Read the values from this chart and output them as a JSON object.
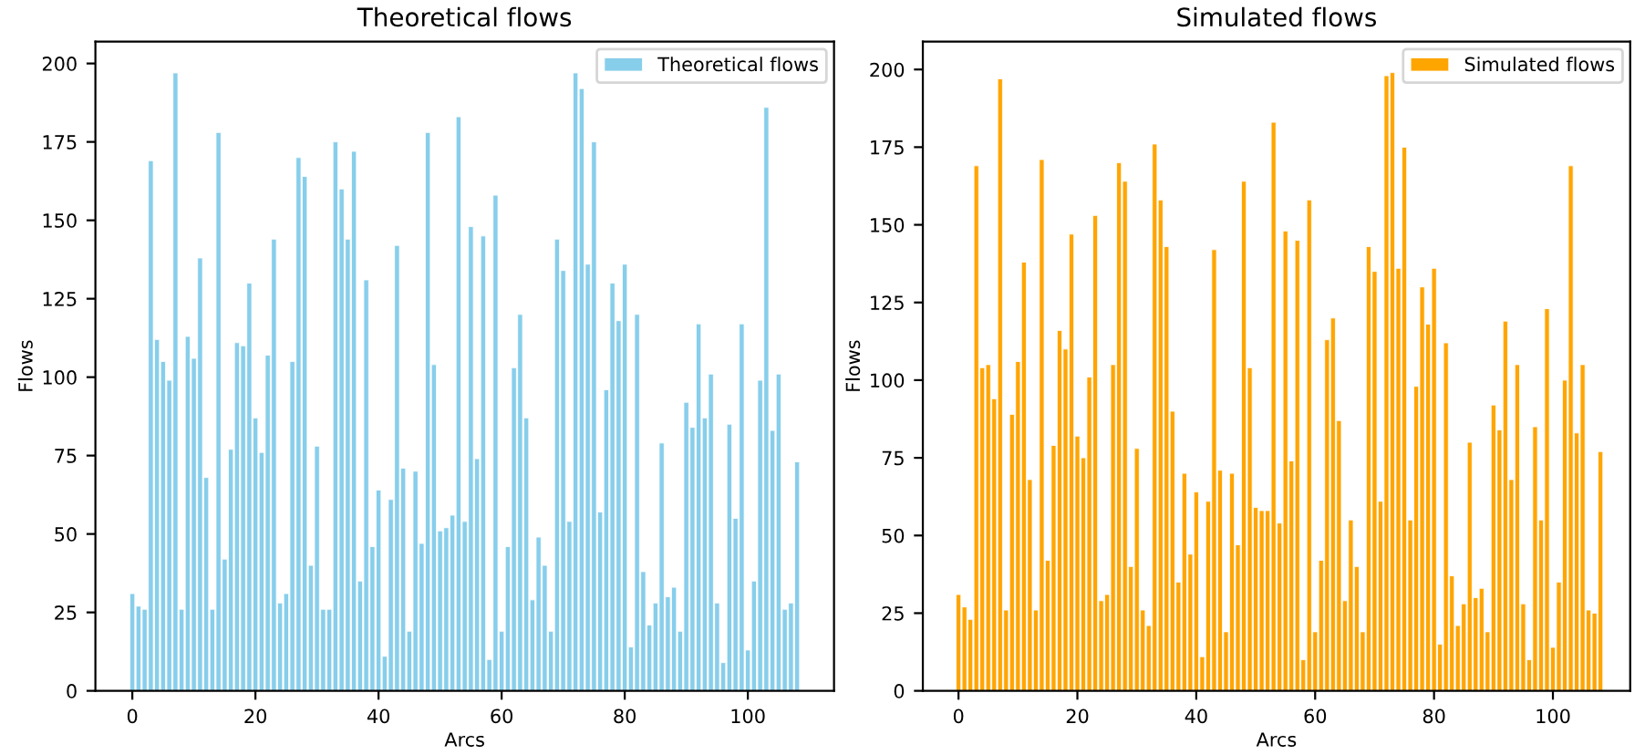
{
  "chart_data": [
    {
      "type": "bar",
      "title": "Theoretical flows",
      "xlabel": "Arcs",
      "ylabel": "Flows",
      "x": [
        0,
        1,
        2,
        3,
        4,
        5,
        6,
        7,
        8,
        9,
        10,
        11,
        12,
        13,
        14,
        15,
        16,
        17,
        18,
        19,
        20,
        21,
        22,
        23,
        24,
        25,
        26,
        27,
        28,
        29,
        30,
        31,
        32,
        33,
        34,
        35,
        36,
        37,
        38,
        39,
        40,
        41,
        42,
        43,
        44,
        45,
        46,
        47,
        48,
        49,
        50,
        51,
        52,
        53,
        54,
        55,
        56,
        57,
        58,
        59,
        60,
        61,
        62,
        63,
        64,
        65,
        66,
        67,
        68,
        69,
        70,
        71,
        72,
        73,
        74,
        75,
        76,
        77,
        78,
        79,
        80,
        81,
        82,
        83,
        84,
        85,
        86,
        87,
        88,
        89,
        90,
        91,
        92,
        93,
        94,
        95,
        96,
        97,
        98,
        99,
        100,
        101,
        102,
        103,
        104,
        105,
        106,
        107,
        108
      ],
      "series": [
        {
          "name": "Theoretical flows",
          "color": "#87ceeb",
          "values": [
            31,
            27,
            26,
            169,
            112,
            105,
            99,
            197,
            26,
            113,
            106,
            138,
            68,
            26,
            178,
            42,
            77,
            111,
            110,
            130,
            87,
            76,
            107,
            144,
            28,
            31,
            105,
            170,
            164,
            40,
            78,
            26,
            26,
            175,
            160,
            144,
            172,
            35,
            131,
            46,
            64,
            11,
            61,
            142,
            71,
            19,
            70,
            47,
            178,
            104,
            51,
            52,
            56,
            183,
            54,
            148,
            74,
            145,
            10,
            158,
            19,
            46,
            103,
            120,
            87,
            29,
            49,
            40,
            19,
            144,
            134,
            54,
            197,
            192,
            136,
            175,
            57,
            96,
            130,
            118,
            136,
            14,
            120,
            38,
            21,
            28,
            79,
            30,
            33,
            19,
            92,
            84,
            117,
            87,
            101,
            28,
            9,
            85,
            55,
            117,
            13,
            35,
            99,
            186,
            83,
            101,
            26,
            28,
            73
          ]
        }
      ],
      "xlim": [
        -6,
        114
      ],
      "xticks": [
        0,
        20,
        40,
        60,
        80,
        100
      ],
      "ylim": [
        0,
        207
      ],
      "yticks": [
        0,
        25,
        50,
        75,
        100,
        125,
        150,
        175,
        200
      ],
      "legend": "top right"
    },
    {
      "type": "bar",
      "title": "Simulated flows",
      "xlabel": "Arcs",
      "ylabel": "Flows",
      "x": [
        0,
        1,
        2,
        3,
        4,
        5,
        6,
        7,
        8,
        9,
        10,
        11,
        12,
        13,
        14,
        15,
        16,
        17,
        18,
        19,
        20,
        21,
        22,
        23,
        24,
        25,
        26,
        27,
        28,
        29,
        30,
        31,
        32,
        33,
        34,
        35,
        36,
        37,
        38,
        39,
        40,
        41,
        42,
        43,
        44,
        45,
        46,
        47,
        48,
        49,
        50,
        51,
        52,
        53,
        54,
        55,
        56,
        57,
        58,
        59,
        60,
        61,
        62,
        63,
        64,
        65,
        66,
        67,
        68,
        69,
        70,
        71,
        72,
        73,
        74,
        75,
        76,
        77,
        78,
        79,
        80,
        81,
        82,
        83,
        84,
        85,
        86,
        87,
        88,
        89,
        90,
        91,
        92,
        93,
        94,
        95,
        96,
        97,
        98,
        99,
        100,
        101,
        102,
        103,
        104,
        105,
        106,
        107,
        108
      ],
      "series": [
        {
          "name": "Simulated flows",
          "color": "#ffa500",
          "values": [
            31,
            27,
            23,
            169,
            104,
            105,
            94,
            197,
            26,
            89,
            106,
            138,
            68,
            26,
            171,
            42,
            79,
            116,
            110,
            147,
            82,
            75,
            101,
            153,
            29,
            31,
            105,
            170,
            164,
            40,
            78,
            26,
            21,
            176,
            158,
            143,
            90,
            35,
            70,
            44,
            64,
            11,
            61,
            142,
            71,
            19,
            70,
            47,
            164,
            104,
            59,
            58,
            58,
            183,
            54,
            148,
            74,
            145,
            10,
            158,
            19,
            42,
            113,
            120,
            87,
            29,
            55,
            40,
            19,
            143,
            135,
            61,
            198,
            199,
            136,
            175,
            55,
            98,
            130,
            118,
            136,
            15,
            112,
            37,
            21,
            28,
            80,
            30,
            33,
            19,
            92,
            84,
            119,
            68,
            105,
            28,
            10,
            85,
            55,
            123,
            14,
            35,
            100,
            169,
            83,
            105,
            26,
            25,
            77
          ]
        }
      ],
      "xlim": [
        -6,
        113
      ],
      "xticks": [
        0,
        20,
        40,
        60,
        80,
        100
      ],
      "ylim": [
        0,
        209
      ],
      "yticks": [
        0,
        25,
        50,
        75,
        100,
        125,
        150,
        175,
        200
      ],
      "legend": "top right"
    }
  ]
}
